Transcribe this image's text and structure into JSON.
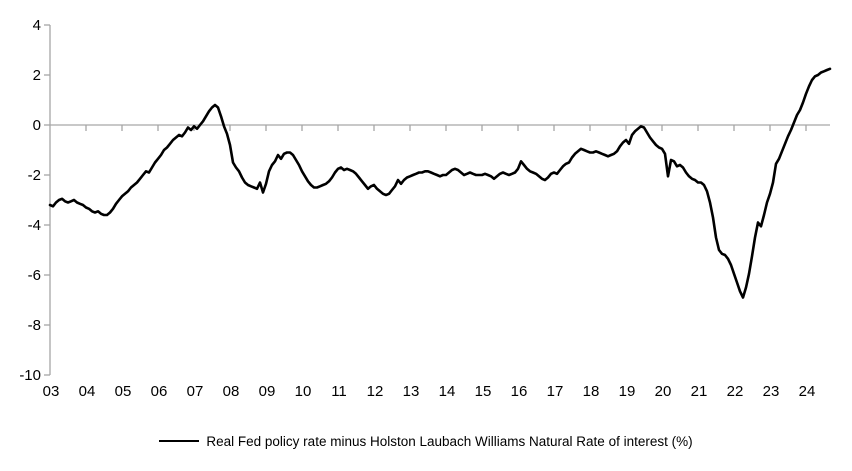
{
  "chart_data": {
    "type": "line",
    "title": "",
    "xlabel": "",
    "ylabel": "",
    "x_axis": {
      "unit": "year",
      "tick_labels": [
        "03",
        "04",
        "05",
        "06",
        "07",
        "08",
        "09",
        "10",
        "11",
        "12",
        "13",
        "14",
        "15",
        "16",
        "17",
        "18",
        "19",
        "20",
        "21",
        "22",
        "23",
        "24"
      ]
    },
    "y_axis": {
      "tick_labels": [
        "4",
        "2",
        "0",
        "-2",
        "-4",
        "-6",
        "-8",
        "-10"
      ],
      "ticks": [
        4,
        2,
        0,
        -2,
        -4,
        -6,
        -8,
        -10
      ],
      "range": [
        -10,
        4
      ]
    },
    "grid": "zero-line-only",
    "colors": {
      "axis": "#a6a6a6",
      "line": "#000000",
      "background": "#ffffff"
    },
    "legend": {
      "position": "bottom",
      "entries": [
        {
          "label": "Real Fed policy rate minus Holston Laubach Williams Natural Rate of interest (%)",
          "color": "#000000"
        }
      ]
    },
    "series": [
      {
        "name": "Real Fed policy rate minus Holston Laubach Williams Natural Rate of interest (%)",
        "color": "#000000",
        "frequency": "monthly",
        "start": "2003-01",
        "end": "2024-09",
        "values": [
          -3.2,
          -3.25,
          -3.1,
          -3.0,
          -2.95,
          -3.05,
          -3.1,
          -3.05,
          -3.0,
          -3.1,
          -3.15,
          -3.2,
          -3.3,
          -3.35,
          -3.45,
          -3.5,
          -3.45,
          -3.55,
          -3.6,
          -3.6,
          -3.5,
          -3.35,
          -3.15,
          -3.0,
          -2.85,
          -2.75,
          -2.65,
          -2.5,
          -2.4,
          -2.3,
          -2.15,
          -2.0,
          -1.85,
          -1.9,
          -1.7,
          -1.5,
          -1.35,
          -1.2,
          -1.0,
          -0.9,
          -0.75,
          -0.6,
          -0.5,
          -0.4,
          -0.45,
          -0.3,
          -0.1,
          -0.2,
          -0.05,
          -0.15,
          0.0,
          0.15,
          0.35,
          0.55,
          0.7,
          0.8,
          0.7,
          0.35,
          -0.05,
          -0.35,
          -0.8,
          -1.5,
          -1.7,
          -1.85,
          -2.1,
          -2.3,
          -2.4,
          -2.45,
          -2.5,
          -2.55,
          -2.3,
          -2.7,
          -2.35,
          -1.85,
          -1.6,
          -1.45,
          -1.2,
          -1.35,
          -1.15,
          -1.1,
          -1.1,
          -1.2,
          -1.4,
          -1.6,
          -1.85,
          -2.05,
          -2.25,
          -2.4,
          -2.5,
          -2.5,
          -2.45,
          -2.4,
          -2.35,
          -2.25,
          -2.1,
          -1.9,
          -1.75,
          -1.7,
          -1.8,
          -1.75,
          -1.8,
          -1.85,
          -1.95,
          -2.1,
          -2.25,
          -2.4,
          -2.55,
          -2.45,
          -2.4,
          -2.55,
          -2.65,
          -2.75,
          -2.8,
          -2.75,
          -2.6,
          -2.45,
          -2.2,
          -2.35,
          -2.2,
          -2.1,
          -2.05,
          -2.0,
          -1.95,
          -1.9,
          -1.9,
          -1.85,
          -1.85,
          -1.9,
          -1.95,
          -2.0,
          -2.05,
          -2.0,
          -2.0,
          -1.9,
          -1.8,
          -1.75,
          -1.8,
          -1.9,
          -2.0,
          -1.95,
          -1.9,
          -1.95,
          -2.0,
          -2.0,
          -2.0,
          -1.95,
          -2.0,
          -2.05,
          -2.15,
          -2.05,
          -1.95,
          -1.9,
          -1.95,
          -2.0,
          -1.95,
          -1.9,
          -1.75,
          -1.45,
          -1.6,
          -1.75,
          -1.85,
          -1.9,
          -1.95,
          -2.05,
          -2.15,
          -2.2,
          -2.1,
          -1.95,
          -1.9,
          -1.95,
          -1.8,
          -1.65,
          -1.55,
          -1.5,
          -1.3,
          -1.15,
          -1.05,
          -0.95,
          -1.0,
          -1.05,
          -1.1,
          -1.1,
          -1.05,
          -1.1,
          -1.15,
          -1.2,
          -1.25,
          -1.2,
          -1.15,
          -1.05,
          -0.85,
          -0.7,
          -0.6,
          -0.75,
          -0.4,
          -0.25,
          -0.15,
          -0.05,
          -0.1,
          -0.3,
          -0.5,
          -0.65,
          -0.8,
          -0.9,
          -0.95,
          -1.15,
          -2.05,
          -1.4,
          -1.45,
          -1.65,
          -1.6,
          -1.7,
          -1.9,
          -2.05,
          -2.15,
          -2.2,
          -2.3,
          -2.3,
          -2.4,
          -2.65,
          -3.1,
          -3.7,
          -4.5,
          -5.0,
          -5.15,
          -5.2,
          -5.35,
          -5.6,
          -5.95,
          -6.3,
          -6.65,
          -6.9,
          -6.5,
          -5.95,
          -5.25,
          -4.5,
          -3.9,
          -4.05,
          -3.6,
          -3.1,
          -2.75,
          -2.3,
          -1.55,
          -1.35,
          -1.05,
          -0.75,
          -0.45,
          -0.2,
          0.1,
          0.4,
          0.6,
          0.9,
          1.25,
          1.55,
          1.8,
          1.95,
          2.0,
          2.1,
          2.15,
          2.2,
          2.25
        ]
      }
    ]
  }
}
